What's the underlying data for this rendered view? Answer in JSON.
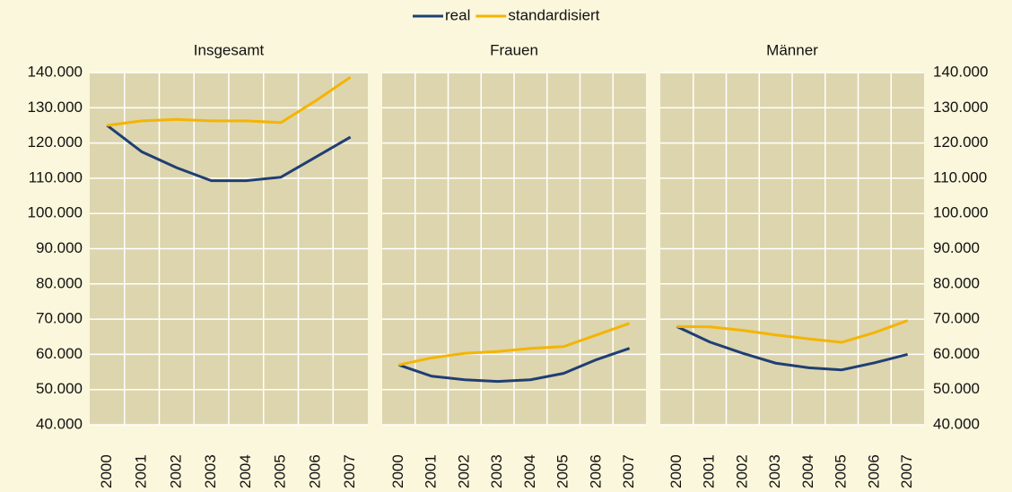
{
  "chart_data": [
    {
      "type": "line",
      "title": "Insgesamt",
      "categories": [
        "2000",
        "2001",
        "2002",
        "2003",
        "2004",
        "2005",
        "2006",
        "2007"
      ],
      "series": [
        {
          "name": "real",
          "color": "#1f3f73",
          "values": [
            125000,
            117500,
            113000,
            109300,
            109300,
            110300,
            116000,
            121700
          ]
        },
        {
          "name": "standardisiert",
          "color": "#f5b400",
          "values": [
            125000,
            126300,
            126700,
            126300,
            126300,
            125800,
            132000,
            138700
          ]
        }
      ],
      "ylim": [
        40000,
        140000
      ],
      "yticks": [
        {
          "value": 40000,
          "label": "40.000"
        },
        {
          "value": 50000,
          "label": "50.000"
        },
        {
          "value": 60000,
          "label": "60.000"
        },
        {
          "value": 70000,
          "label": "70.000"
        },
        {
          "value": 80000,
          "label": "80.000"
        },
        {
          "value": 90000,
          "label": "90.000"
        },
        {
          "value": 100000,
          "label": "100.000"
        },
        {
          "value": 110000,
          "label": "110.000"
        },
        {
          "value": 120000,
          "label": "120.000"
        },
        {
          "value": 130000,
          "label": "130.000"
        },
        {
          "value": 140000,
          "label": "140.000"
        }
      ],
      "grid": true
    },
    {
      "type": "line",
      "title": "Frauen",
      "categories": [
        "2000",
        "2001",
        "2002",
        "2003",
        "2004",
        "2005",
        "2006",
        "2007"
      ],
      "series": [
        {
          "name": "real",
          "color": "#1f3f73",
          "values": [
            57000,
            53800,
            52800,
            52300,
            52800,
            54600,
            58500,
            61700
          ]
        },
        {
          "name": "standardisiert",
          "color": "#f5b400",
          "values": [
            57000,
            59000,
            60300,
            60800,
            61700,
            62200,
            65500,
            68800
          ]
        }
      ],
      "ylim": [
        40000,
        140000
      ],
      "yticks": [
        {
          "value": 40000,
          "label": "40.000"
        },
        {
          "value": 50000,
          "label": "50.000"
        },
        {
          "value": 60000,
          "label": "60.000"
        },
        {
          "value": 70000,
          "label": "70.000"
        },
        {
          "value": 80000,
          "label": "80.000"
        },
        {
          "value": 90000,
          "label": "90.000"
        },
        {
          "value": 100000,
          "label": "100.000"
        },
        {
          "value": 110000,
          "label": "110.000"
        },
        {
          "value": 120000,
          "label": "120.000"
        },
        {
          "value": 130000,
          "label": "130.000"
        },
        {
          "value": 140000,
          "label": "140.000"
        }
      ],
      "grid": true
    },
    {
      "type": "line",
      "title": "Männer",
      "categories": [
        "2000",
        "2001",
        "2002",
        "2003",
        "2004",
        "2005",
        "2006",
        "2007"
      ],
      "series": [
        {
          "name": "real",
          "color": "#1f3f73",
          "values": [
            67900,
            63500,
            60300,
            57500,
            56200,
            55600,
            57600,
            60000
          ]
        },
        {
          "name": "standardisiert",
          "color": "#f5b400",
          "values": [
            67900,
            67800,
            66800,
            65500,
            64400,
            63400,
            66200,
            69600
          ]
        }
      ],
      "ylim": [
        40000,
        140000
      ],
      "yticks": [
        {
          "value": 40000,
          "label": "40.000"
        },
        {
          "value": 50000,
          "label": "50.000"
        },
        {
          "value": 60000,
          "label": "60.000"
        },
        {
          "value": 70000,
          "label": "70.000"
        },
        {
          "value": 80000,
          "label": "80.000"
        },
        {
          "value": 90000,
          "label": "90.000"
        },
        {
          "value": 100000,
          "label": "100.000"
        },
        {
          "value": 110000,
          "label": "110.000"
        },
        {
          "value": 120000,
          "label": "120.000"
        },
        {
          "value": 130000,
          "label": "130.000"
        },
        {
          "value": 140000,
          "label": "140.000"
        }
      ],
      "grid": true
    }
  ]
}
